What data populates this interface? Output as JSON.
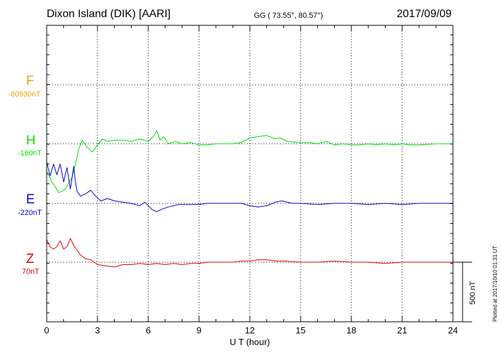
{
  "header": {
    "station": "Dixon Island (DIK)  [AARI]",
    "coords": "GG ( 73.55°,  80.57°)",
    "date": "2017/09/09"
  },
  "footer": {
    "plotted": "Plotted at 2017/10/10 01:31  UT",
    "scale_label": "500 nT"
  },
  "colors": {
    "F": "#f0a000",
    "H": "#00dd00",
    "E": "#0000cc",
    "Z": "#dd0000"
  },
  "chart_data": {
    "type": "line",
    "title": "Dixon Island (DIK)  [AARI]",
    "xlabel": "U T (hour)",
    "xlim": [
      0,
      24
    ],
    "xticks": [
      0,
      3,
      6,
      9,
      12,
      15,
      18,
      21,
      24
    ],
    "grid": true,
    "channels": [
      {
        "name": "F",
        "baseline": "-60930nT",
        "points": []
      },
      {
        "name": "H",
        "baseline": "-160nT",
        "points": [
          [
            0,
            -230
          ],
          [
            0.3,
            -320
          ],
          [
            0.5,
            -360
          ],
          [
            0.7,
            -410
          ],
          [
            0.9,
            -400
          ],
          [
            1.1,
            -380
          ],
          [
            1.3,
            -330
          ],
          [
            1.5,
            -280
          ],
          [
            1.7,
            -170
          ],
          [
            1.9,
            -40
          ],
          [
            2.1,
            30
          ],
          [
            2.4,
            -30
          ],
          [
            2.7,
            -70
          ],
          [
            3.0,
            -10
          ],
          [
            3.3,
            40
          ],
          [
            3.6,
            20
          ],
          [
            4.0,
            30
          ],
          [
            4.5,
            30
          ],
          [
            5.0,
            20
          ],
          [
            5.5,
            40
          ],
          [
            6.0,
            20
          ],
          [
            6.3,
            60
          ],
          [
            6.5,
            110
          ],
          [
            6.7,
            30
          ],
          [
            6.9,
            60
          ],
          [
            7.2,
            0
          ],
          [
            7.6,
            20
          ],
          [
            8.0,
            0
          ],
          [
            8.5,
            10
          ],
          [
            9.0,
            -10
          ],
          [
            9.5,
            -10
          ],
          [
            10.0,
            0
          ],
          [
            10.5,
            0
          ],
          [
            11.0,
            0
          ],
          [
            11.5,
            10
          ],
          [
            12.0,
            50
          ],
          [
            12.5,
            60
          ],
          [
            13.0,
            70
          ],
          [
            13.5,
            40
          ],
          [
            13.8,
            50
          ],
          [
            14.2,
            20
          ],
          [
            15.0,
            10
          ],
          [
            15.5,
            10
          ],
          [
            16.0,
            0
          ],
          [
            16.5,
            20
          ],
          [
            17.0,
            -10
          ],
          [
            17.5,
            0
          ],
          [
            18.0,
            -10
          ],
          [
            18.5,
            -10
          ],
          [
            19.0,
            0
          ],
          [
            19.5,
            -10
          ],
          [
            20.0,
            0
          ],
          [
            20.5,
            -10
          ],
          [
            21.0,
            0
          ],
          [
            21.5,
            -10
          ],
          [
            22.0,
            -10
          ],
          [
            23.0,
            0
          ],
          [
            24.0,
            0
          ]
        ]
      },
      {
        "name": "E",
        "baseline": "-220nT",
        "points": [
          [
            0,
            350
          ],
          [
            0.2,
            230
          ],
          [
            0.4,
            330
          ],
          [
            0.6,
            240
          ],
          [
            0.8,
            330
          ],
          [
            1.0,
            180
          ],
          [
            1.2,
            300
          ],
          [
            1.4,
            120
          ],
          [
            1.6,
            310
          ],
          [
            1.7,
            180
          ],
          [
            1.8,
            100
          ],
          [
            2.0,
            60
          ],
          [
            2.3,
            80
          ],
          [
            2.6,
            110
          ],
          [
            2.9,
            60
          ],
          [
            3.2,
            20
          ],
          [
            3.6,
            40
          ],
          [
            4.0,
            20
          ],
          [
            4.5,
            10
          ],
          [
            5.0,
            0
          ],
          [
            5.5,
            -20
          ],
          [
            5.8,
            10
          ],
          [
            6.2,
            -50
          ],
          [
            6.5,
            -70
          ],
          [
            6.8,
            -50
          ],
          [
            7.2,
            -30
          ],
          [
            7.8,
            -10
          ],
          [
            8.5,
            -10
          ],
          [
            9.0,
            -10
          ],
          [
            9.5,
            0
          ],
          [
            10.0,
            0
          ],
          [
            10.5,
            0
          ],
          [
            11.0,
            0
          ],
          [
            11.5,
            0
          ],
          [
            12.0,
            -20
          ],
          [
            12.5,
            -30
          ],
          [
            13.0,
            -20
          ],
          [
            13.5,
            10
          ],
          [
            13.9,
            20
          ],
          [
            14.5,
            0
          ],
          [
            15.0,
            0
          ],
          [
            16.0,
            -10
          ],
          [
            17.0,
            0
          ],
          [
            18.0,
            0
          ],
          [
            19.0,
            -10
          ],
          [
            20.0,
            0
          ],
          [
            21.0,
            -10
          ],
          [
            22.0,
            0
          ],
          [
            23.0,
            0
          ],
          [
            24.0,
            0
          ]
        ]
      },
      {
        "name": "Z",
        "baseline": "70nT",
        "points": [
          [
            0,
            190
          ],
          [
            0.2,
            130
          ],
          [
            0.4,
            110
          ],
          [
            0.6,
            130
          ],
          [
            0.8,
            180
          ],
          [
            1.0,
            110
          ],
          [
            1.2,
            130
          ],
          [
            1.4,
            200
          ],
          [
            1.6,
            140
          ],
          [
            1.8,
            100
          ],
          [
            2.0,
            60
          ],
          [
            2.3,
            30
          ],
          [
            2.6,
            20
          ],
          [
            3.0,
            -20
          ],
          [
            3.5,
            -30
          ],
          [
            4.0,
            -40
          ],
          [
            4.5,
            -20
          ],
          [
            5.0,
            -20
          ],
          [
            5.5,
            -10
          ],
          [
            6.0,
            -20
          ],
          [
            6.5,
            -10
          ],
          [
            7.0,
            -20
          ],
          [
            7.5,
            -10
          ],
          [
            8.0,
            -20
          ],
          [
            8.5,
            -10
          ],
          [
            9.0,
            -10
          ],
          [
            9.5,
            0
          ],
          [
            10.0,
            0
          ],
          [
            10.5,
            0
          ],
          [
            11.0,
            0
          ],
          [
            11.5,
            10
          ],
          [
            12.0,
            10
          ],
          [
            12.5,
            20
          ],
          [
            13.0,
            20
          ],
          [
            13.5,
            10
          ],
          [
            14.0,
            10
          ],
          [
            15.0,
            0
          ],
          [
            16.0,
            0
          ],
          [
            17.0,
            10
          ],
          [
            18.0,
            0
          ],
          [
            19.0,
            0
          ],
          [
            20.0,
            -10
          ],
          [
            21.0,
            0
          ],
          [
            22.0,
            0
          ],
          [
            23.0,
            0
          ],
          [
            24.0,
            0
          ]
        ]
      }
    ]
  }
}
